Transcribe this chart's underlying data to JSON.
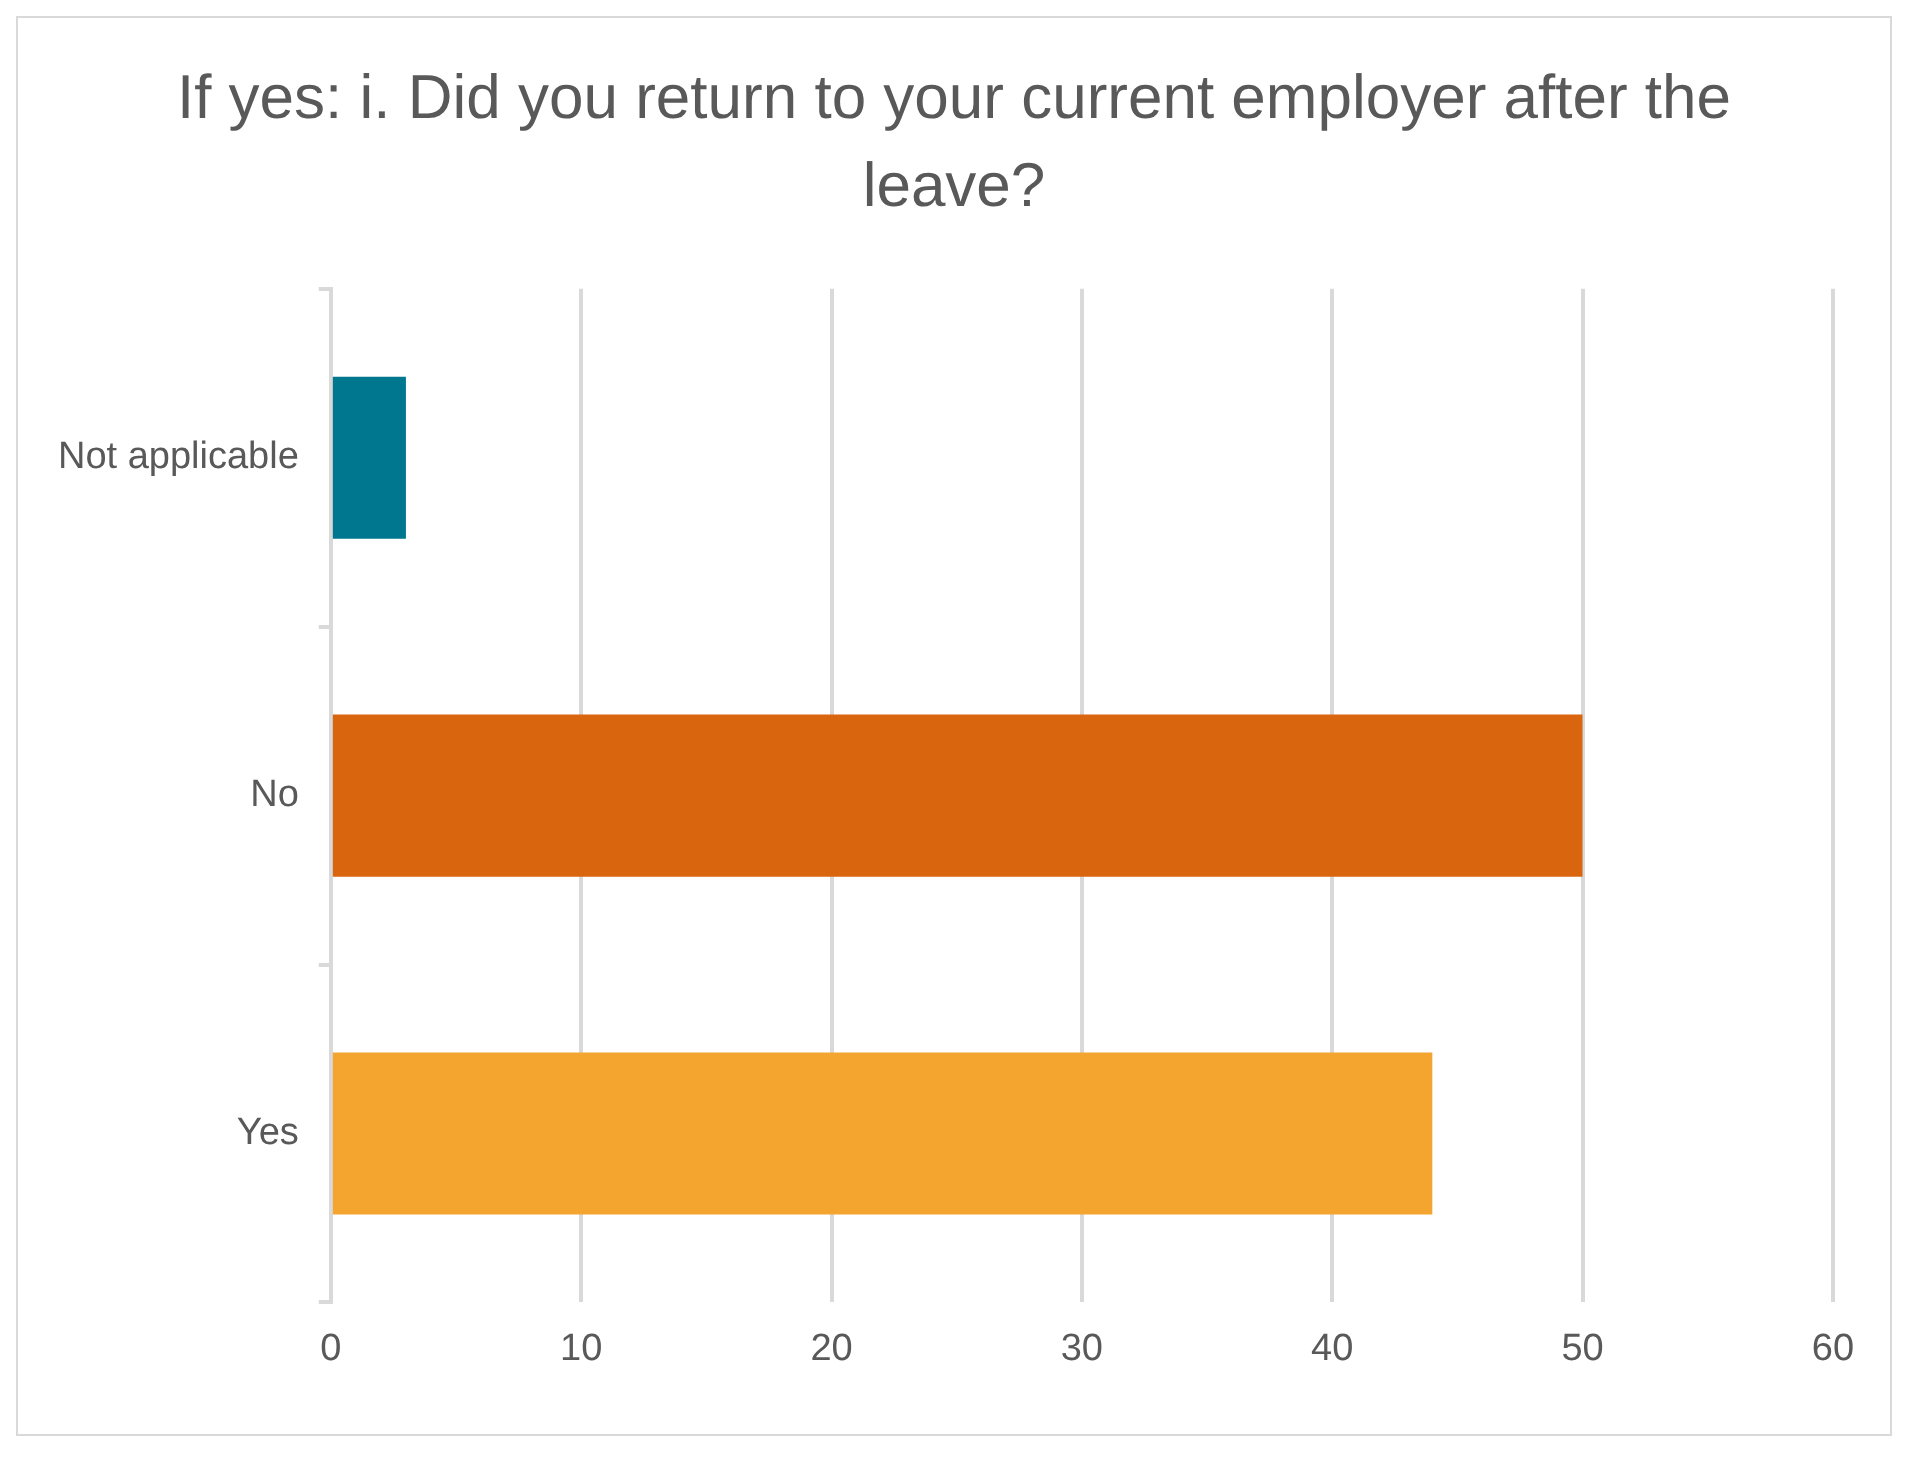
{
  "chart_data": {
    "type": "bar",
    "orientation": "horizontal",
    "title": "If yes: i. Did you return to your current employer after the leave?",
    "categories": [
      "Not applicable",
      "No",
      "Yes"
    ],
    "values": [
      3,
      50,
      44
    ],
    "colors": [
      "#00778f",
      "#d9650f",
      "#f3a530"
    ],
    "xlim": [
      0,
      60
    ],
    "xticks": [
      0,
      10,
      20,
      30,
      40,
      50,
      60
    ],
    "grid": "x",
    "legend": false
  }
}
